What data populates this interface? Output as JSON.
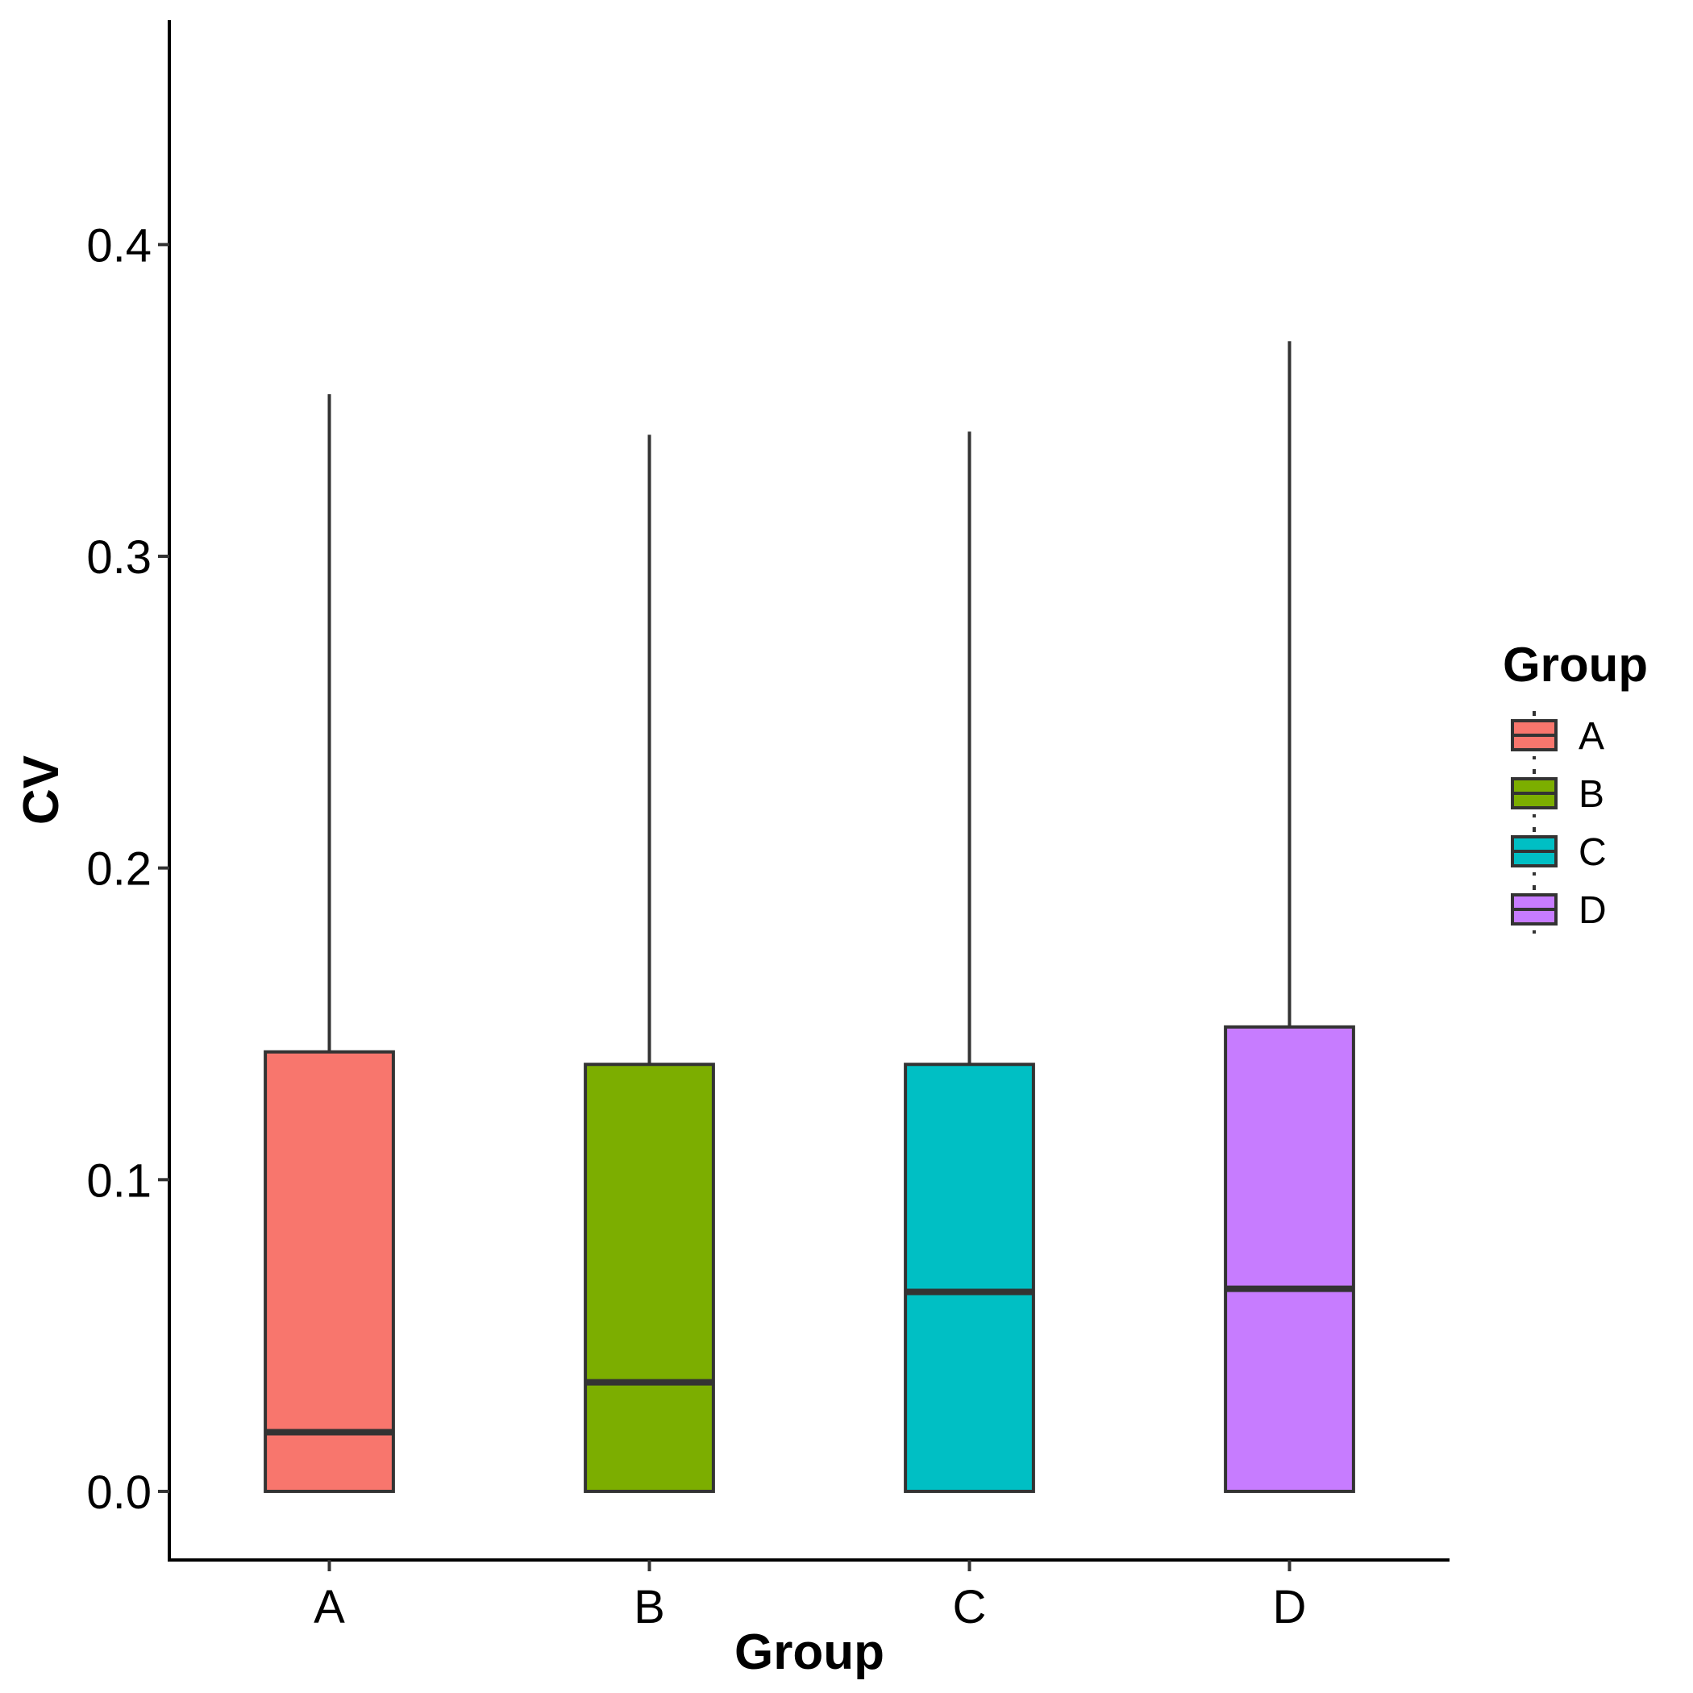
{
  "chart_data": {
    "type": "boxplot",
    "xlabel": "Group",
    "ylabel": "CV",
    "categories": [
      "A",
      "B",
      "C",
      "D"
    ],
    "yticks": [
      "0.0",
      "0.1",
      "0.2",
      "0.3",
      "0.4"
    ],
    "ytick_values": [
      0.0,
      0.1,
      0.2,
      0.3,
      0.4
    ],
    "ylim": [
      -0.022,
      0.472
    ],
    "grid": false,
    "boxes": [
      {
        "group": "A",
        "min": 0.0,
        "q1": 0.0,
        "median": 0.019,
        "q3": 0.141,
        "max": 0.352,
        "color": "#F8766D"
      },
      {
        "group": "B",
        "min": 0.0,
        "q1": 0.0,
        "median": 0.035,
        "q3": 0.137,
        "max": 0.339,
        "color": "#7CAE00"
      },
      {
        "group": "C",
        "min": 0.0,
        "q1": 0.0,
        "median": 0.064,
        "q3": 0.137,
        "max": 0.34,
        "color": "#00BFC4"
      },
      {
        "group": "D",
        "min": 0.0,
        "q1": 0.0,
        "median": 0.065,
        "q3": 0.149,
        "max": 0.369,
        "color": "#C77CFF"
      }
    ],
    "legend": {
      "title": "Group",
      "placement": "right",
      "entries": [
        "A",
        "B",
        "C",
        "D"
      ]
    }
  }
}
